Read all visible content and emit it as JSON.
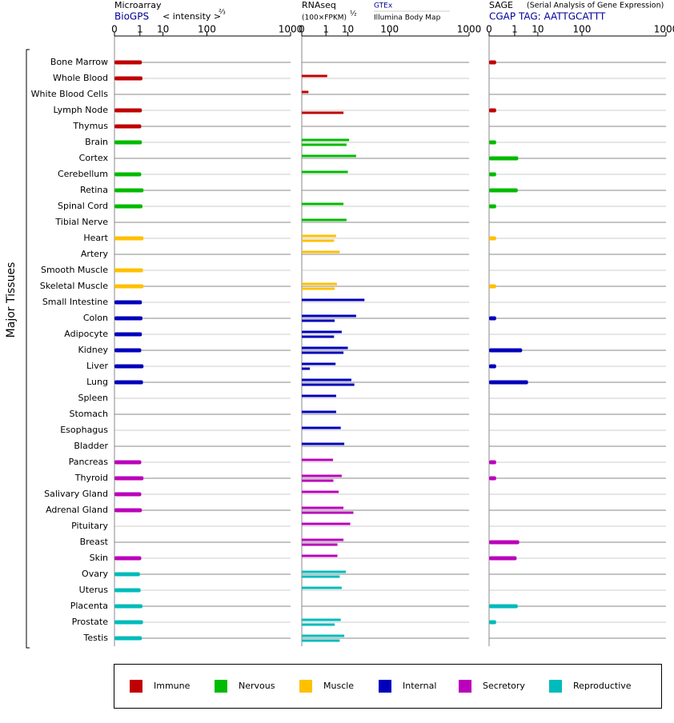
{
  "chart_data": {
    "type": "bar",
    "orientation": "horizontal",
    "y_label": "Major Tissues",
    "categories": [
      "Bone Marrow",
      "Whole Blood",
      "White Blood Cells",
      "Lymph Node",
      "Thymus",
      "Brain",
      "Cortex",
      "Cerebellum",
      "Retina",
      "Spinal Cord",
      "Tibial Nerve",
      "Heart",
      "Artery",
      "Smooth Muscle",
      "Skeletal Muscle",
      "Small Intestine",
      "Colon",
      "Adipocyte",
      "Kidney",
      "Liver",
      "Lung",
      "Spleen",
      "Stomach",
      "Esophagus",
      "Bladder",
      "Pancreas",
      "Thyroid",
      "Salivary Gland",
      "Adrenal Gland",
      "Pituitary",
      "Breast",
      "Skin",
      "Ovary",
      "Uterus",
      "Placenta",
      "Prostate",
      "Testis"
    ],
    "category_colors": [
      "#c00000",
      "#c00000",
      "#c00000",
      "#c00000",
      "#c00000",
      "#00bb00",
      "#00bb00",
      "#00bb00",
      "#00bb00",
      "#00bb00",
      "#00bb00",
      "#ffc000",
      "#ffc000",
      "#ffc000",
      "#ffc000",
      "#0000bb",
      "#0000bb",
      "#0000bb",
      "#0000bb",
      "#0000bb",
      "#0000bb",
      "#0000bb",
      "#0000bb",
      "#0000bb",
      "#0000bb",
      "#bb00bb",
      "#bb00bb",
      "#bb00bb",
      "#bb00bb",
      "#bb00bb",
      "#bb00bb",
      "#bb00bb",
      "#00bbbb",
      "#00bbbb",
      "#00bbbb",
      "#00bbbb",
      "#00bbbb"
    ],
    "legend": [
      {
        "name": "Immune",
        "color": "#c00000"
      },
      {
        "name": "Nervous",
        "color": "#00bb00"
      },
      {
        "name": "Muscle",
        "color": "#ffc000"
      },
      {
        "name": "Internal",
        "color": "#0000bb"
      },
      {
        "name": "Secretory",
        "color": "#bb00bb"
      },
      {
        "name": "Reproductive",
        "color": "#00bbbb"
      }
    ],
    "panels": [
      {
        "title": "Microarray",
        "subtitle": "BioGPS",
        "unit": "< intensity >",
        "unit_power": "⅔",
        "xlim": [
          0,
          1000
        ],
        "xticks": [
          0,
          1,
          10,
          100,
          1000
        ],
        "series": [
          {
            "values": [
              1.3,
              1.4,
              null,
              1.3,
              1.2,
              1.3,
              null,
              1.2,
              1.6,
              1.4,
              null,
              1.6,
              null,
              1.5,
              1.6,
              1.3,
              1.4,
              1.3,
              1.2,
              1.6,
              1.5,
              null,
              null,
              null,
              null,
              1.2,
              1.6,
              1.2,
              1.3,
              null,
              null,
              1.2,
              1.0,
              1.1,
              1.4,
              1.5,
              1.3
            ]
          }
        ]
      },
      {
        "title": "RNAseq",
        "unit": "(100×FPKM)",
        "unit_power": "½",
        "xlim": [
          0,
          1000
        ],
        "xticks": [
          0,
          1,
          10,
          100,
          1000
        ],
        "series": [
          {
            "name": "GTEx",
            "values": [
              null,
              1.2,
              0.01,
              null,
              null,
              11,
              18,
              10,
              null,
              7,
              9,
              3.5,
              5,
              null,
              3.8,
              30,
              18,
              6,
              10,
              3.3,
              13,
              3.5,
              3.5,
              5.5,
              7.5,
              2.5,
              6,
              4.5,
              7,
              12,
              7,
              4,
              8.5,
              6,
              null,
              5.5,
              7.5
            ]
          },
          {
            "name": "Illumina Body Map",
            "values": [
              null,
              null,
              null,
              7,
              null,
              9,
              null,
              null,
              null,
              null,
              null,
              2.8,
              null,
              null,
              3,
              null,
              3,
              2.8,
              7,
              0.02,
              16,
              null,
              null,
              null,
              null,
              null,
              2.6,
              null,
              15,
              null,
              4,
              null,
              5,
              null,
              null,
              3,
              5
            ]
          }
        ]
      },
      {
        "title": "SAGE",
        "subtitle": "CGAP TAG: AATTGCATTT",
        "note": "(Serial Analysis of Gene Expression)",
        "xlim": [
          0,
          1000
        ],
        "xticks": [
          0,
          1,
          10,
          100,
          1000
        ],
        "series": [
          {
            "values": [
              0.01,
              null,
              null,
              0.01,
              null,
              0.01,
              1.6,
              0.01,
              1.5,
              0.01,
              null,
              0.01,
              null,
              null,
              0.01,
              null,
              0.01,
              null,
              2.5,
              0.01,
              4.5,
              null,
              null,
              null,
              null,
              0.01,
              0.01,
              null,
              null,
              null,
              1.8,
              1.3,
              null,
              null,
              1.5,
              0.01,
              null
            ]
          }
        ]
      }
    ]
  }
}
